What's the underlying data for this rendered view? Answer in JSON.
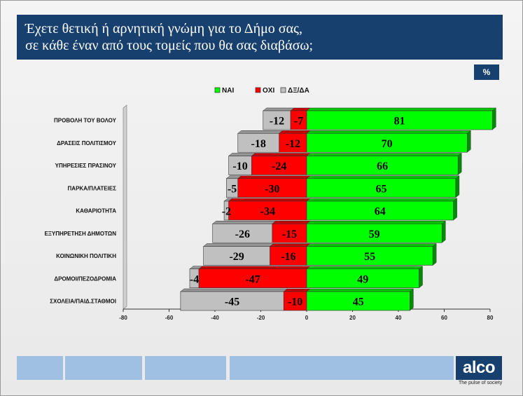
{
  "title_lines": [
    "Έχετε θετική ή αρνητική γνώμη για το Δήμο σας,",
    "σε κάθε έναν από τους τομείς που θα σας διαβάσω;"
  ],
  "unit_badge": "%",
  "logo": {
    "text": "alco",
    "tagline": "The pulse of society"
  },
  "chart_data": {
    "type": "bar",
    "orientation": "horizontal",
    "stacked": true,
    "categories": [
      "ΠΡΟΒΟΛΗ ΤΟΥ ΒΟΛΟΥ",
      "ΔΡΑΣΕΙΣ ΠΟΛΙΤΙΣΜΟΥ",
      "ΥΠΗΡΕΣΙΕΣ ΠΡΑΣΙΝΟΥ",
      "ΠΑΡΚΑ/ΠΛΑΤΕΙΕΣ",
      "ΚΑΘΑΡΙΟΤΗΤΑ",
      "ΕΞΥΠΗΡΕΤΗΣΗ ΔΗΜΟΤΩΝ",
      "ΚΟΙΝΩΝΙΚΗ ΠΟΛΙΤΙΚΗ",
      "ΔΡΟΜΟΙ/ΠΕΖΟΔΡΟΜΙΑ",
      "ΣΧΟΛΕΙΑ/ΠΑΙΔ.ΣΤΑΘΜΟΙ"
    ],
    "series": [
      {
        "name": "ΝΑΙ",
        "color": "#00ff00",
        "values": [
          81,
          70,
          66,
          65,
          64,
          59,
          55,
          49,
          45
        ]
      },
      {
        "name": "ΟΧΙ",
        "color": "#ff0000",
        "values": [
          -7,
          -12,
          -24,
          -30,
          -34,
          -15,
          -16,
          -47,
          -10
        ]
      },
      {
        "name": "ΔΞ/ΔΑ",
        "color": "#c0c0c0",
        "values": [
          -12,
          -18,
          -10,
          -5,
          -2,
          -26,
          -29,
          -4,
          -45
        ]
      }
    ],
    "xlim": [
      -80,
      80
    ],
    "xticks": [
      "-80",
      "-60",
      "-40",
      "-20",
      "0",
      "20",
      "40",
      "60",
      "80"
    ],
    "legend_position": "top",
    "grid": false
  }
}
